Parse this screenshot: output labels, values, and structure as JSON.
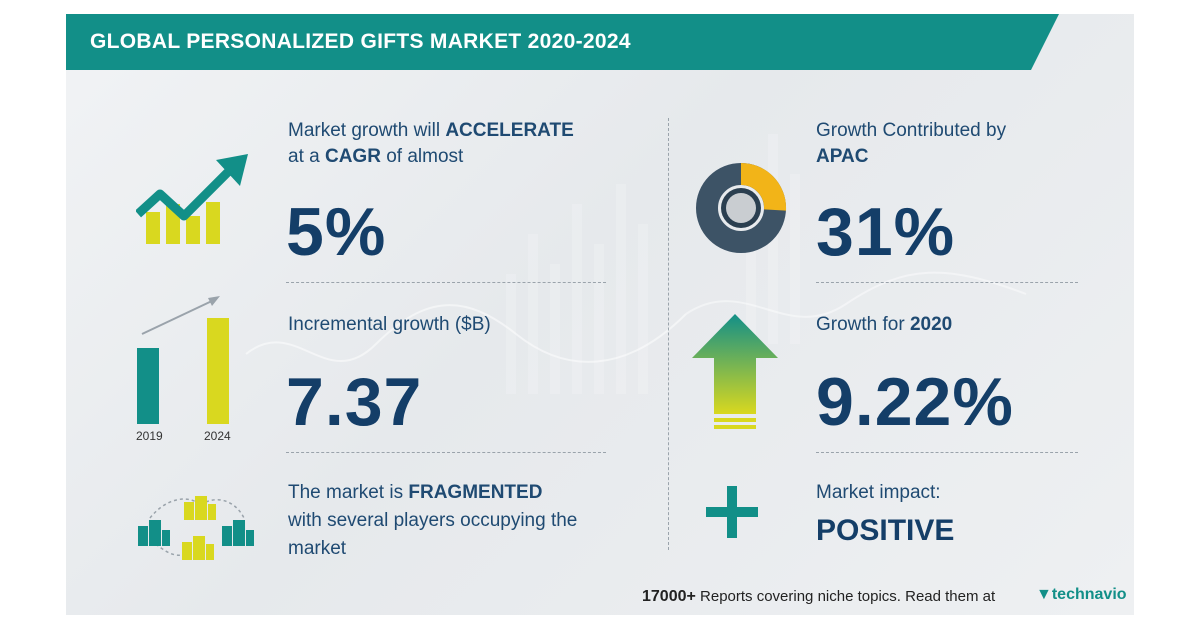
{
  "header": {
    "title": "GLOBAL PERSONALIZED GIFTS MARKET 2020-2024"
  },
  "left": {
    "growth": {
      "line1_prefix": "Market growth will",
      "line1_emph": "ACCELERATE",
      "line2_prefix": "at a",
      "line2_emph": "CAGR",
      "line2_suffix": "of almost",
      "value": "5%"
    },
    "incremental": {
      "label": "Incremental growth ($B)",
      "value": "7.37",
      "bar_year_start": "2019",
      "bar_year_end": "2024"
    },
    "fragmented": {
      "line1_prefix": "The market is",
      "line1_emph": "FRAGMENTED",
      "line2": "with several players occupying the",
      "line3": "market"
    }
  },
  "right": {
    "region": {
      "line1": "Growth Contributed by",
      "line2": "APAC",
      "value": "31%"
    },
    "yoy": {
      "label_prefix": "Growth for",
      "label_year": "2020",
      "value": "9.22%"
    },
    "impact": {
      "label": "Market impact:",
      "value": "POSITIVE"
    }
  },
  "footer": {
    "count": "17000+",
    "text": "Reports covering niche topics. Read them at",
    "brand": "technavio"
  },
  "icons": [
    "trend-chart-icon",
    "bar-growth-icon",
    "buildings-network-icon",
    "donut-chart-icon",
    "up-arrow-icon",
    "plus-icon",
    "technavio-logo-icon"
  ],
  "colors": {
    "teal": "#128f88",
    "navy": "#143e68",
    "yellow": "#d9d81f",
    "gold": "#f2b418",
    "slate": "#3d5366"
  }
}
